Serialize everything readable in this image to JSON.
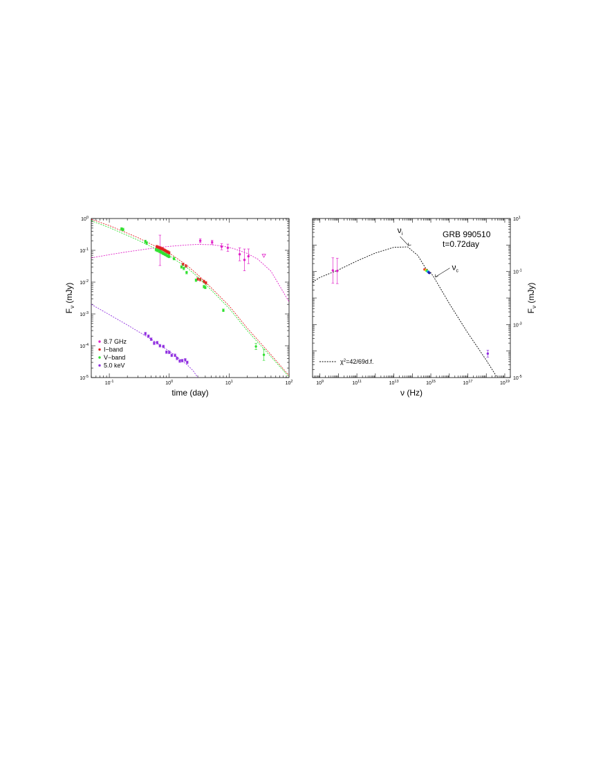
{
  "chart_data": [
    {
      "type": "scatter",
      "panel": "left",
      "xlabel": "time (day)",
      "ylabel_main": "F",
      "ylabel_sub": "ν",
      "ylabel_unit": " (mJy)",
      "xscale": "log",
      "yscale": "log",
      "xlim": [
        0.05,
        100
      ],
      "ylim": [
        1e-05,
        1
      ],
      "x_ticks": [
        {
          "value": 0.1,
          "base": "10",
          "exp": "-1"
        },
        {
          "value": 1,
          "base": "10",
          "exp": "0"
        },
        {
          "value": 10,
          "base": "10",
          "exp": "1"
        },
        {
          "value": 100,
          "base": "10",
          "exp": "2"
        }
      ],
      "y_ticks": [
        {
          "value": 1,
          "base": "10",
          "exp": "0"
        },
        {
          "value": 0.1,
          "base": "10",
          "exp": "-1"
        },
        {
          "value": 0.01,
          "base": "10",
          "exp": "-2"
        },
        {
          "value": 0.001,
          "base": "10",
          "exp": "-3"
        },
        {
          "value": 0.0001,
          "base": "10",
          "exp": "-4"
        },
        {
          "value": 1e-05,
          "base": "10",
          "exp": "-5"
        }
      ],
      "legend_position": "bottom-left",
      "series": [
        {
          "name": "8.7 GHz",
          "color": "#e020c8",
          "points": [
            [
              0.7,
              0.1,
              3
            ],
            [
              3.3,
              0.2,
              1.15
            ],
            [
              5.2,
              0.18,
              1.15
            ],
            [
              7.5,
              0.13,
              1.25
            ],
            [
              9.5,
              0.12,
              1.3
            ],
            [
              15,
              0.075,
              1.6
            ],
            [
              18,
              0.05,
              2.2
            ],
            [
              21,
              0.065,
              1.7
            ]
          ],
          "upper_limits": [
            [
              38,
              0.068
            ]
          ],
          "model": [
            [
              0.05,
              0.058
            ],
            [
              0.1,
              0.073
            ],
            [
              0.2,
              0.09
            ],
            [
              0.5,
              0.115
            ],
            [
              1,
              0.133
            ],
            [
              2,
              0.148
            ],
            [
              3,
              0.153
            ],
            [
              5,
              0.15
            ],
            [
              8,
              0.135
            ],
            [
              12,
              0.113
            ],
            [
              20,
              0.08
            ],
            [
              30,
              0.053
            ],
            [
              50,
              0.022
            ],
            [
              100,
              0.0024
            ]
          ]
        },
        {
          "name": "I−band",
          "color": "#e02020",
          "points": [
            [
              0.62,
              0.13,
              1.1
            ],
            [
              0.65,
              0.125,
              1.1
            ],
            [
              0.68,
              0.12,
              1.1
            ],
            [
              0.71,
              0.118,
              1.1
            ],
            [
              0.74,
              0.113,
              1.1
            ],
            [
              0.77,
              0.11,
              1.1
            ],
            [
              0.8,
              0.105,
              1.1
            ],
            [
              0.84,
              0.1,
              1.1
            ],
            [
              0.88,
              0.095,
              1.1
            ],
            [
              0.92,
              0.09,
              1.1
            ],
            [
              0.96,
              0.087,
              1.1
            ],
            [
              1.0,
              0.083,
              1.1
            ],
            [
              1.7,
              0.036,
              1.1
            ],
            [
              1.9,
              0.032,
              1.1
            ],
            [
              3.0,
              0.0125,
              1.1
            ],
            [
              3.3,
              0.012,
              1.1
            ],
            [
              3.8,
              0.0105,
              1.1
            ],
            [
              4.1,
              0.0095,
              1.1
            ]
          ],
          "model": [
            [
              0.05,
              0.95
            ],
            [
              0.1,
              0.6
            ],
            [
              0.3,
              0.25
            ],
            [
              1,
              0.082
            ],
            [
              2,
              0.033
            ],
            [
              3,
              0.017
            ],
            [
              5,
              0.0067
            ],
            [
              10,
              0.0018
            ],
            [
              20,
              0.00036
            ],
            [
              50,
              5.2e-05
            ],
            [
              100,
              1.15e-05
            ]
          ]
        },
        {
          "name": "V−band",
          "color": "#30e030",
          "points": [
            [
              0.16,
              0.47,
              1.1
            ],
            [
              0.17,
              0.45,
              1.1
            ],
            [
              0.4,
              0.19,
              1.1
            ],
            [
              0.42,
              0.17,
              1.1
            ],
            [
              0.6,
              0.105,
              1.1
            ],
            [
              0.63,
              0.1,
              1.1
            ],
            [
              0.66,
              0.098,
              1.1
            ],
            [
              0.69,
              0.093,
              1.1
            ],
            [
              0.72,
              0.09,
              1.1
            ],
            [
              0.75,
              0.086,
              1.1
            ],
            [
              0.78,
              0.082,
              1.1
            ],
            [
              0.81,
              0.079,
              1.1
            ],
            [
              0.85,
              0.075,
              1.1
            ],
            [
              0.89,
              0.072,
              1.1
            ],
            [
              0.93,
              0.068,
              1.1
            ],
            [
              0.97,
              0.066,
              1.1
            ],
            [
              1.0,
              0.064,
              1.1
            ],
            [
              1.2,
              0.055,
              1.1
            ],
            [
              1.6,
              0.03,
              1.1
            ],
            [
              1.75,
              0.027,
              1.1
            ],
            [
              1.95,
              0.02,
              1.1
            ],
            [
              2.8,
              0.0115,
              1.1
            ],
            [
              3.8,
              0.0072,
              1.1
            ],
            [
              4.0,
              0.0068,
              1.1
            ],
            [
              8.0,
              0.0013,
              1.1
            ],
            [
              28,
              9.5e-05,
              1.25
            ],
            [
              38,
              5.2e-05,
              1.5
            ]
          ],
          "model": [
            [
              0.05,
              0.85
            ],
            [
              0.1,
              0.52
            ],
            [
              0.3,
              0.21
            ],
            [
              1,
              0.068
            ],
            [
              2,
              0.028
            ],
            [
              3,
              0.0145
            ],
            [
              5,
              0.0057
            ],
            [
              10,
              0.0015
            ],
            [
              20,
              0.0003
            ],
            [
              50,
              4.5e-05
            ],
            [
              100,
              1.05e-05
            ]
          ]
        },
        {
          "name": "5.0 keV",
          "color": "#9030e0",
          "points": [
            [
              0.4,
              0.00024,
              1.1
            ],
            [
              0.45,
              0.0002,
              1.1
            ],
            [
              0.5,
              0.00016,
              1.1
            ],
            [
              0.56,
              0.00012,
              1.1
            ],
            [
              0.63,
              0.000125,
              1.1
            ],
            [
              0.7,
              0.0001,
              1.1
            ],
            [
              0.8,
              9.5e-05,
              1.1
            ],
            [
              0.9,
              6.3e-05,
              1.1
            ],
            [
              1.0,
              6.2e-05,
              1.1
            ],
            [
              1.1,
              5e-05,
              1.1
            ],
            [
              1.25,
              5e-05,
              1.1
            ],
            [
              1.35,
              4e-05,
              1.1
            ],
            [
              1.5,
              3.3e-05,
              1.1
            ],
            [
              1.65,
              3.4e-05,
              1.1
            ],
            [
              1.85,
              3.6e-05,
              1.1
            ],
            [
              2.0,
              3e-05,
              1.1
            ]
          ],
          "model": [
            [
              0.05,
              0.002
            ],
            [
              0.1,
              0.00095
            ],
            [
              0.2,
              0.00045
            ],
            [
              0.5,
              0.00016
            ],
            [
              1,
              6.8e-05
            ],
            [
              1.5,
              3.8e-05
            ],
            [
              2,
              2.5e-05
            ],
            [
              2.5,
              1.65e-05
            ],
            [
              3,
              1e-05
            ]
          ]
        }
      ]
    },
    {
      "type": "scatter",
      "panel": "right",
      "xlabel": "ν (Hz)",
      "ylabel_main": "F",
      "ylabel_sub": "ν",
      "ylabel_unit": " (mJy)",
      "ylabel_side": "right",
      "xscale": "log",
      "yscale": "log",
      "xlim": [
        400000000,
        20000000000000000000
      ],
      "ylim": [
        1e-05,
        10
      ],
      "x_ticks": [
        {
          "value": 1000000000,
          "base": "10",
          "exp": "9"
        },
        {
          "value": 100000000000,
          "base": "10",
          "exp": "11"
        },
        {
          "value": 10000000000000,
          "base": "10",
          "exp": "13"
        },
        {
          "value": 1000000000000000,
          "base": "10",
          "exp": "15"
        },
        {
          "value": 100000000000000000,
          "base": "10",
          "exp": "17"
        },
        {
          "value": 10000000000000000000,
          "base": "10",
          "exp": "19"
        }
      ],
      "y_ticks": [
        {
          "value": 10,
          "base": "10",
          "exp": "1"
        },
        {
          "value": 0.1,
          "base": "10",
          "exp": "-1"
        },
        {
          "value": 0.001,
          "base": "10",
          "exp": "-3"
        },
        {
          "value": 1e-05,
          "base": "10",
          "exp": "-5"
        }
      ],
      "title_lines": [
        "GRB 990510",
        "t=0.72day"
      ],
      "legend_label_main": "χ",
      "legend_label_sup": "2",
      "legend_label_rest": "=42/69d.f.",
      "annotations": [
        {
          "main": "ν",
          "sub": "i",
          "x": 56000000000000,
          "y": 0.85
        },
        {
          "main": "ν",
          "sub": "c",
          "x": 1600000000000000,
          "y": 0.055
        }
      ],
      "model": [
        [
          400000000,
          0.04
        ],
        [
          1000000000,
          0.06
        ],
        [
          8700000000,
          0.11
        ],
        [
          100000000000,
          0.25
        ],
        [
          1000000000000,
          0.5
        ],
        [
          10000000000000,
          0.82
        ],
        [
          56000000000000,
          0.85
        ],
        [
          200000000000000,
          0.4
        ],
        [
          500000000000000,
          0.14
        ],
        [
          1000000000000000,
          0.09
        ],
        [
          1600000000000000,
          0.055
        ],
        [
          10000000000000000,
          0.0062
        ],
        [
          100000000000000000,
          0.00048
        ],
        [
          1000000000000000000,
          4.5e-05
        ],
        [
          10000000000000000000,
          3.5e-06
        ]
      ],
      "points": [
        {
          "x": 5000000000,
          "y": 0.11,
          "err": 3,
          "color": "#e020c8"
        },
        {
          "x": 8700000000,
          "y": 0.105,
          "err": 3,
          "color": "#e020c8"
        },
        {
          "x": 460000000000000,
          "y": 0.12,
          "err": 1.05,
          "color": "#e02020"
        },
        {
          "x": 520000000000000,
          "y": 0.115,
          "err": 1.05,
          "color": "#e09020"
        },
        {
          "x": 560000000000000,
          "y": 0.11,
          "err": 1.05,
          "color": "#e0e020"
        },
        {
          "x": 610000000000000,
          "y": 0.105,
          "err": 1.05,
          "color": "#30e030"
        },
        {
          "x": 680000000000000,
          "y": 0.1,
          "err": 1.05,
          "color": "#20c8d8"
        },
        {
          "x": 750000000000000,
          "y": 0.094,
          "err": 1.05,
          "color": "#2040e0"
        },
        {
          "x": 830000000000000,
          "y": 0.088,
          "err": 1.05,
          "color": "#2020a0"
        },
        {
          "x": 1200000000000000000,
          "y": 8e-05,
          "err": 1.35,
          "color": "#9030e0"
        }
      ]
    }
  ]
}
